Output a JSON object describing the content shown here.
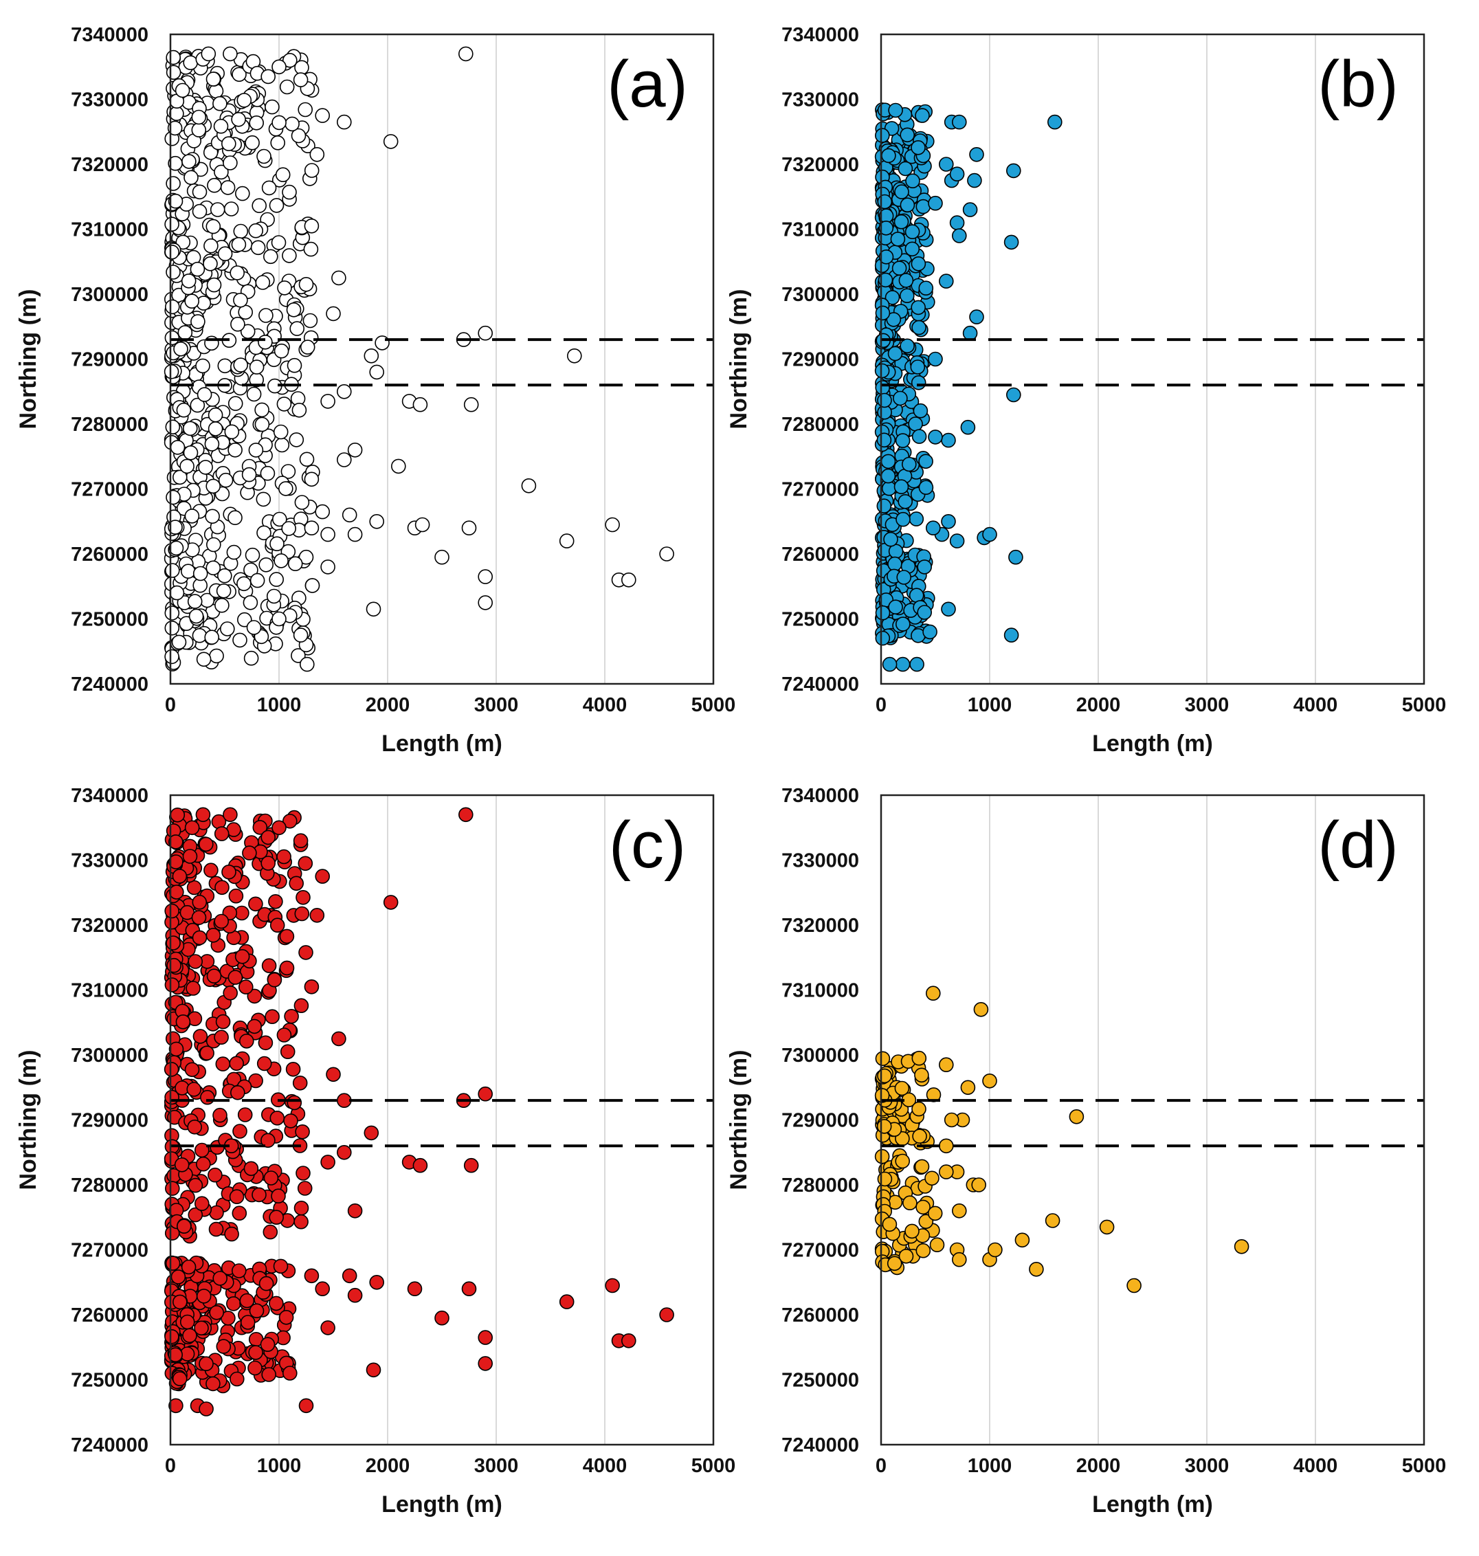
{
  "figure": {
    "marker_stroke": "#000000",
    "threshold_color": "#000000",
    "grid_color": "#d9d9d9"
  },
  "chart_data": [
    {
      "panel": "(a)",
      "type": "scatter",
      "xlabel": "Length (m)",
      "ylabel": "Northing (m)",
      "xlim": [
        0,
        5000
      ],
      "ylim": [
        7240000,
        7340000
      ],
      "xticks": [
        0,
        1000,
        2000,
        3000,
        4000,
        5000
      ],
      "yticks": [
        7240000,
        7250000,
        7260000,
        7270000,
        7280000,
        7290000,
        7300000,
        7310000,
        7320000,
        7330000,
        7340000
      ],
      "x_tick_labels": [
        "0",
        "1000",
        "2000",
        "3000",
        "4000",
        "5000"
      ],
      "y_tick_labels": [
        "7240000",
        "7250000",
        "7260000",
        "7270000",
        "7280000",
        "7290000",
        "7300000",
        "7310000",
        "7320000",
        "7330000",
        "7340000"
      ],
      "grid": "vertical",
      "marker_fill": "#ffffff",
      "reference_lines": [
        7293000,
        7286000
      ],
      "dense_clusters": [
        {
          "xmax": 1300,
          "ymin": 7243000,
          "ymax": 7337000,
          "n": 620,
          "seed": 11
        }
      ],
      "points": [
        [
          2720,
          7337000
        ],
        [
          2030,
          7323500
        ],
        [
          1400,
          7327500
        ],
        [
          1600,
          7326500
        ],
        [
          1350,
          7321500
        ],
        [
          1300,
          7310500
        ],
        [
          1550,
          7302500
        ],
        [
          1500,
          7297000
        ],
        [
          1250,
          7301500
        ],
        [
          1950,
          7292500
        ],
        [
          1850,
          7290500
        ],
        [
          1900,
          7288000
        ],
        [
          2700,
          7293000
        ],
        [
          2900,
          7294000
        ],
        [
          3720,
          7290500
        ],
        [
          2200,
          7283500
        ],
        [
          2300,
          7283000
        ],
        [
          2770,
          7283000
        ],
        [
          1600,
          7285000
        ],
        [
          1450,
          7283500
        ],
        [
          1700,
          7276000
        ],
        [
          1600,
          7274500
        ],
        [
          2100,
          7273500
        ],
        [
          1300,
          7271500
        ],
        [
          3300,
          7270500
        ],
        [
          1400,
          7266500
        ],
        [
          1300,
          7264000
        ],
        [
          1450,
          7263000
        ],
        [
          1650,
          7266000
        ],
        [
          1700,
          7263000
        ],
        [
          1900,
          7265000
        ],
        [
          2250,
          7264000
        ],
        [
          2320,
          7264500
        ],
        [
          2750,
          7264000
        ],
        [
          4070,
          7264500
        ],
        [
          4570,
          7260000
        ],
        [
          3650,
          7262000
        ],
        [
          2500,
          7259500
        ],
        [
          2900,
          7256500
        ],
        [
          4130,
          7256000
        ],
        [
          4220,
          7256000
        ],
        [
          1450,
          7258000
        ],
        [
          1250,
          7259500
        ],
        [
          1150,
          7258500
        ],
        [
          2900,
          7252500
        ],
        [
          1870,
          7251500
        ],
        [
          1150,
          7251000
        ],
        [
          1100,
          7250500
        ],
        [
          1000,
          7250000
        ],
        [
          1250,
          7246000
        ],
        [
          1200,
          7247500
        ],
        [
          350,
          7337000
        ],
        [
          550,
          7337000
        ],
        [
          1100,
          7336000
        ],
        [
          800,
          7334000
        ],
        [
          1000,
          7335000
        ],
        [
          1200,
          7333000
        ],
        [
          900,
          7333500
        ]
      ]
    },
    {
      "panel": "(b)",
      "type": "scatter",
      "xlabel": "Length (m)",
      "ylabel": "Northing (m)",
      "xlim": [
        0,
        5000
      ],
      "ylim": [
        7240000,
        7340000
      ],
      "xticks": [
        0,
        1000,
        2000,
        3000,
        4000,
        5000
      ],
      "yticks": [
        7240000,
        7250000,
        7260000,
        7270000,
        7280000,
        7290000,
        7300000,
        7310000,
        7320000,
        7330000,
        7340000
      ],
      "x_tick_labels": [
        "0",
        "1000",
        "2000",
        "3000",
        "4000",
        "5000"
      ],
      "y_tick_labels": [
        "7240000",
        "7250000",
        "7260000",
        "7270000",
        "7280000",
        "7290000",
        "7300000",
        "7310000",
        "7320000",
        "7330000",
        "7340000"
      ],
      "grid": "vertical",
      "marker_fill": "#1f9fd6",
      "reference_lines": [
        7293000,
        7286000
      ],
      "dense_clusters": [
        {
          "xmax": 420,
          "ymin": 7247000,
          "ymax": 7328500,
          "n": 460,
          "seed": 23
        }
      ],
      "points": [
        [
          1600,
          7326500
        ],
        [
          1220,
          7319000
        ],
        [
          1200,
          7308000
        ],
        [
          1220,
          7284500
        ],
        [
          1240,
          7259500
        ],
        [
          1200,
          7247500
        ],
        [
          880,
          7321500
        ],
        [
          860,
          7317500
        ],
        [
          820,
          7313000
        ],
        [
          700,
          7311000
        ],
        [
          720,
          7309000
        ],
        [
          650,
          7326500
        ],
        [
          720,
          7326500
        ],
        [
          600,
          7320000
        ],
        [
          650,
          7317500
        ],
        [
          700,
          7318500
        ],
        [
          600,
          7302000
        ],
        [
          880,
          7296500
        ],
        [
          820,
          7294000
        ],
        [
          500,
          7290000
        ],
        [
          800,
          7279500
        ],
        [
          620,
          7277500
        ],
        [
          500,
          7278000
        ],
        [
          950,
          7262500
        ],
        [
          1000,
          7263000
        ],
        [
          700,
          7262000
        ],
        [
          620,
          7265000
        ],
        [
          560,
          7263000
        ],
        [
          480,
          7264000
        ],
        [
          620,
          7251500
        ],
        [
          450,
          7248000
        ],
        [
          330,
          7243000
        ],
        [
          200,
          7243000
        ],
        [
          80,
          7243000
        ],
        [
          400,
          7258000
        ],
        [
          400,
          7251000
        ],
        [
          380,
          7327500
        ],
        [
          500,
          7314000
        ]
      ]
    },
    {
      "panel": "(c)",
      "type": "scatter",
      "xlabel": "Length (m)",
      "ylabel": "Northing (m)",
      "xlim": [
        0,
        5000
      ],
      "ylim": [
        7240000,
        7340000
      ],
      "xticks": [
        0,
        1000,
        2000,
        3000,
        4000,
        5000
      ],
      "yticks": [
        7240000,
        7250000,
        7260000,
        7270000,
        7280000,
        7290000,
        7300000,
        7310000,
        7320000,
        7330000,
        7340000
      ],
      "x_tick_labels": [
        "0",
        "1000",
        "2000",
        "3000",
        "4000",
        "5000"
      ],
      "y_tick_labels": [
        "7240000",
        "7250000",
        "7260000",
        "7270000",
        "7280000",
        "7290000",
        "7300000",
        "7310000",
        "7320000",
        "7330000",
        "7340000"
      ],
      "grid": "vertical",
      "marker_fill": "#e01a1a",
      "reference_lines": [
        7293000,
        7286000
      ],
      "dense_clusters": [
        {
          "xmax": 1250,
          "ymin": 7272000,
          "ymax": 7337000,
          "n": 380,
          "seed": 37
        },
        {
          "xmax": 1100,
          "ymin": 7249000,
          "ymax": 7268000,
          "n": 200,
          "seed": 41
        }
      ],
      "points": [
        [
          2720,
          7337000
        ],
        [
          2030,
          7323500
        ],
        [
          1400,
          7327500
        ],
        [
          1350,
          7321500
        ],
        [
          1300,
          7310500
        ],
        [
          1550,
          7302500
        ],
        [
          1500,
          7297000
        ],
        [
          1850,
          7288000
        ],
        [
          1600,
          7293000
        ],
        [
          2700,
          7293000
        ],
        [
          2900,
          7294000
        ],
        [
          2200,
          7283500
        ],
        [
          2300,
          7283000
        ],
        [
          2770,
          7283000
        ],
        [
          1600,
          7285000
        ],
        [
          1450,
          7283500
        ],
        [
          1700,
          7276000
        ],
        [
          1300,
          7266000
        ],
        [
          1400,
          7264000
        ],
        [
          1650,
          7266000
        ],
        [
          1700,
          7263000
        ],
        [
          1900,
          7265000
        ],
        [
          2250,
          7264000
        ],
        [
          2750,
          7264000
        ],
        [
          4070,
          7264500
        ],
        [
          3650,
          7262000
        ],
        [
          4570,
          7260000
        ],
        [
          2500,
          7259500
        ],
        [
          2900,
          7256500
        ],
        [
          4130,
          7256000
        ],
        [
          4220,
          7256000
        ],
        [
          1450,
          7258000
        ],
        [
          2900,
          7252500
        ],
        [
          1870,
          7251500
        ],
        [
          1100,
          7251000
        ],
        [
          1250,
          7246000
        ],
        [
          50,
          7246000
        ],
        [
          250,
          7246000
        ],
        [
          330,
          7245500
        ],
        [
          550,
          7337000
        ],
        [
          300,
          7337000
        ],
        [
          1100,
          7336000
        ],
        [
          1200,
          7333000
        ],
        [
          900,
          7333500
        ],
        [
          1000,
          7335000
        ],
        [
          200,
          7335000
        ]
      ]
    },
    {
      "panel": "(d)",
      "type": "scatter",
      "xlabel": "Length (m)",
      "ylabel": "Northing (m)",
      "xlim": [
        0,
        5000
      ],
      "ylim": [
        7240000,
        7340000
      ],
      "xticks": [
        0,
        1000,
        2000,
        3000,
        4000,
        5000
      ],
      "yticks": [
        7240000,
        7250000,
        7260000,
        7270000,
        7280000,
        7290000,
        7300000,
        7310000,
        7320000,
        7330000,
        7340000
      ],
      "x_tick_labels": [
        "0",
        "1000",
        "2000",
        "3000",
        "4000",
        "5000"
      ],
      "y_tick_labels": [
        "7240000",
        "7250000",
        "7260000",
        "7270000",
        "7280000",
        "7290000",
        "7300000",
        "7310000",
        "7320000",
        "7330000",
        "7340000"
      ],
      "grid": "vertical",
      "marker_fill": "#f5b21c",
      "reference_lines": [
        7293000,
        7286000
      ],
      "dense_clusters": [
        {
          "xmax": 480,
          "ymin": 7286000,
          "ymax": 7300000,
          "n": 70,
          "seed": 53
        },
        {
          "xmax": 520,
          "ymin": 7267000,
          "ymax": 7285000,
          "n": 60,
          "seed": 59
        }
      ],
      "points": [
        [
          480,
          7309500
        ],
        [
          920,
          7307000
        ],
        [
          1800,
          7290500
        ],
        [
          1000,
          7296000
        ],
        [
          600,
          7298500
        ],
        [
          800,
          7295000
        ],
        [
          750,
          7290000
        ],
        [
          650,
          7290000
        ],
        [
          850,
          7280000
        ],
        [
          900,
          7280000
        ],
        [
          700,
          7282000
        ],
        [
          600,
          7282000
        ],
        [
          720,
          7276000
        ],
        [
          700,
          7270000
        ],
        [
          720,
          7268500
        ],
        [
          1000,
          7268500
        ],
        [
          1050,
          7270000
        ],
        [
          1300,
          7271500
        ],
        [
          1430,
          7267000
        ],
        [
          1580,
          7274500
        ],
        [
          2080,
          7273500
        ],
        [
          2330,
          7264500
        ],
        [
          3320,
          7270500
        ],
        [
          350,
          7299500
        ],
        [
          600,
          7286000
        ]
      ]
    }
  ],
  "panels_text": [
    {
      "label": "(a)",
      "xlabel": "Length (m)",
      "ylabel": "Northing (m)"
    },
    {
      "label": "(b)",
      "xlabel": "Length (m)",
      "ylabel": "Northing (m)"
    },
    {
      "label": "(c)",
      "xlabel": "Length (m)",
      "ylabel": "Northing (m)"
    },
    {
      "label": "(d)",
      "xlabel": "Length (m)",
      "ylabel": "Northing (m)"
    }
  ]
}
